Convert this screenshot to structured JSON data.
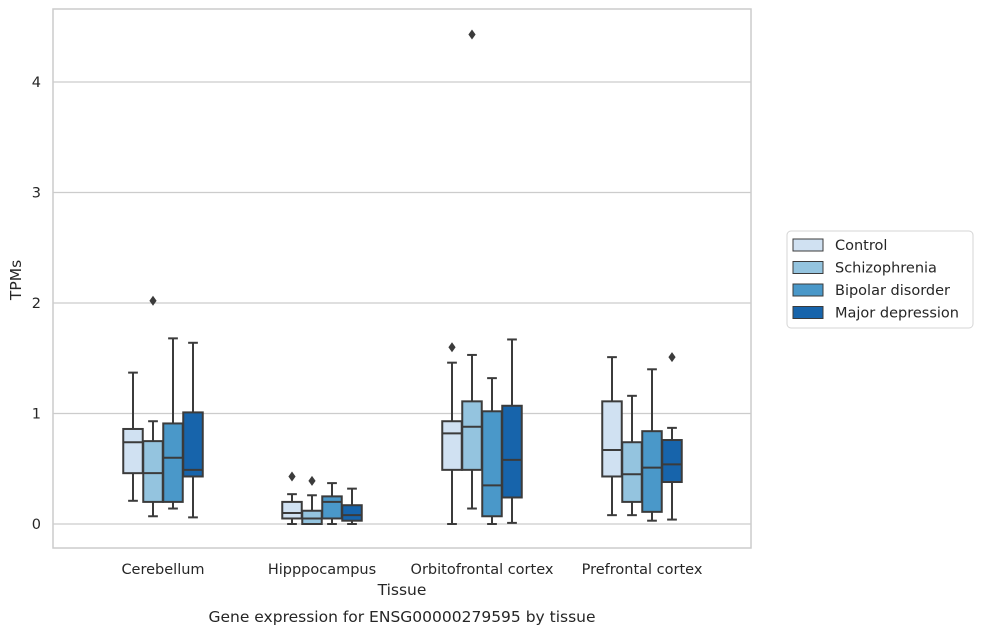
{
  "chart_data": {
    "type": "boxplot",
    "title": "Gene expression for ENSG00000279595 by tissue",
    "xlabel": "Tissue",
    "ylabel": "TPMs",
    "ylim": [
      -0.22,
      4.65
    ],
    "yticks": [
      0,
      1,
      2,
      3,
      4
    ],
    "categories": [
      "Cerebellum",
      "Hipppocampus",
      "Orbitofrontal cortex",
      "Prefrontal cortex"
    ],
    "grid": "horizontal",
    "legend_position": "right",
    "series": [
      {
        "name": "Control",
        "color": "#d0e1f2",
        "boxes": [
          {
            "whislo": 0.21,
            "q1": 0.46,
            "med": 0.74,
            "q3": 0.86,
            "whishi": 1.37,
            "fliers": []
          },
          {
            "whislo": 0.0,
            "q1": 0.05,
            "med": 0.1,
            "q3": 0.2,
            "whishi": 0.27,
            "fliers": [
              0.43
            ]
          },
          {
            "whislo": 0.0,
            "q1": 0.49,
            "med": 0.82,
            "q3": 0.93,
            "whishi": 1.46,
            "fliers": [
              1.6
            ]
          },
          {
            "whislo": 0.08,
            "q1": 0.43,
            "med": 0.67,
            "q3": 1.11,
            "whishi": 1.51,
            "fliers": []
          }
        ]
      },
      {
        "name": "Schizophrenia",
        "color": "#94c4df",
        "boxes": [
          {
            "whislo": 0.07,
            "q1": 0.2,
            "med": 0.46,
            "q3": 0.75,
            "whishi": 0.93,
            "fliers": [
              2.02
            ]
          },
          {
            "whislo": 0.0,
            "q1": 0.0,
            "med": 0.05,
            "q3": 0.12,
            "whishi": 0.26,
            "fliers": [
              0.39
            ]
          },
          {
            "whislo": 0.14,
            "q1": 0.49,
            "med": 0.88,
            "q3": 1.11,
            "whishi": 1.53,
            "fliers": [
              4.43
            ]
          },
          {
            "whislo": 0.08,
            "q1": 0.2,
            "med": 0.45,
            "q3": 0.74,
            "whishi": 1.16,
            "fliers": []
          }
        ]
      },
      {
        "name": "Bipolar disorder",
        "color": "#4a98c9",
        "boxes": [
          {
            "whislo": 0.14,
            "q1": 0.2,
            "med": 0.6,
            "q3": 0.91,
            "whishi": 1.68,
            "fliers": []
          },
          {
            "whislo": 0.0,
            "q1": 0.05,
            "med": 0.2,
            "q3": 0.25,
            "whishi": 0.37,
            "fliers": []
          },
          {
            "whislo": 0.0,
            "q1": 0.07,
            "med": 0.35,
            "q3": 1.02,
            "whishi": 1.32,
            "fliers": []
          },
          {
            "whislo": 0.03,
            "q1": 0.11,
            "med": 0.51,
            "q3": 0.84,
            "whishi": 1.4,
            "fliers": []
          }
        ]
      },
      {
        "name": "Major depression",
        "color": "#1764ab",
        "boxes": [
          {
            "whislo": 0.06,
            "q1": 0.43,
            "med": 0.49,
            "q3": 1.01,
            "whishi": 1.64,
            "fliers": []
          },
          {
            "whislo": 0.0,
            "q1": 0.03,
            "med": 0.08,
            "q3": 0.17,
            "whishi": 0.32,
            "fliers": []
          },
          {
            "whislo": 0.01,
            "q1": 0.24,
            "med": 0.58,
            "q3": 1.07,
            "whishi": 1.67,
            "fliers": []
          },
          {
            "whislo": 0.04,
            "q1": 0.38,
            "med": 0.54,
            "q3": 0.76,
            "whishi": 0.87,
            "fliers": [
              1.51
            ]
          }
        ]
      }
    ],
    "colors": {
      "line": "#3b3b3b",
      "grid": "#cccccc",
      "frame": "#cccccc"
    }
  }
}
